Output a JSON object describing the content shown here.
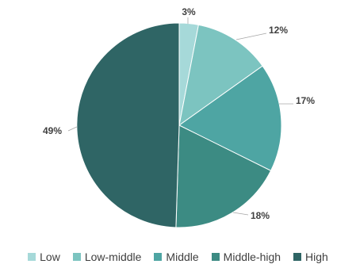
{
  "chart_data": {
    "type": "pie",
    "title": "",
    "categories": [
      "Low",
      "Low-middle",
      "Middle",
      "Middle-high",
      "High"
    ],
    "values": [
      3,
      12,
      17,
      18,
      49
    ],
    "labels": [
      "3%",
      "12%",
      "17%",
      "18%",
      "49%"
    ],
    "colors": [
      "#a6d9d9",
      "#7cc4c0",
      "#4ea5a3",
      "#3c8b83",
      "#2f6565"
    ],
    "legend_position": "bottom"
  }
}
